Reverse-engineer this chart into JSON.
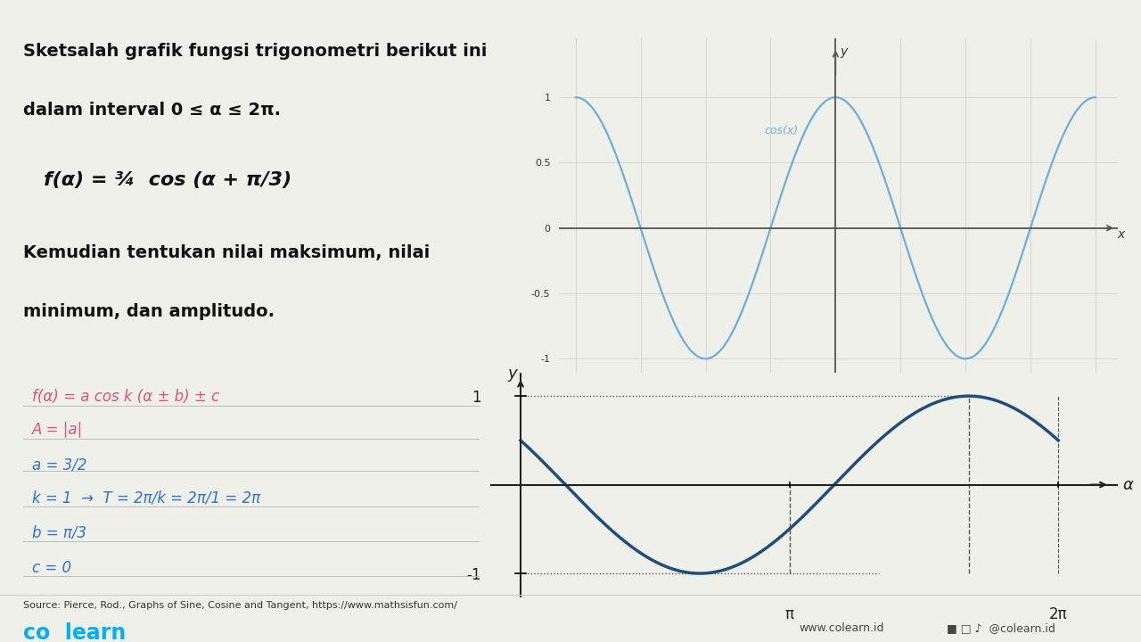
{
  "bg_color": "#f0f0eb",
  "small_plot_color": "#6baed6",
  "big_plot_color": "#1f4e79",
  "hw_red": "#e05080",
  "hw_blue": "#3070d0",
  "colearn_color": "#00b0f0",
  "tick_label_color": "#8B4513",
  "source_text": "Source: Pierce, Rod., Graphs of Sine, Cosine and Tangent, https://www.mathsisfun.com/",
  "website_text": "www.colearn.id",
  "social_text": "@colearn.id"
}
